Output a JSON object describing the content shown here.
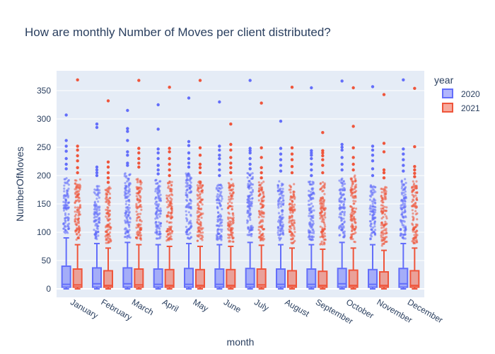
{
  "chart_data": {
    "type": "box",
    "title": "How are monthly Number of Moves per client distributed?",
    "xlabel": "month",
    "ylabel": "NumberOfMoves",
    "categories": [
      "January",
      "February",
      "March",
      "April",
      "May",
      "June",
      "July",
      "August",
      "September",
      "October",
      "November",
      "December"
    ],
    "ylim": [
      -15,
      385
    ],
    "yticks": [
      0,
      50,
      100,
      150,
      200,
      250,
      300,
      350
    ],
    "grid": true,
    "legend": {
      "title": "year",
      "position": "top-right"
    },
    "series": [
      {
        "name": "2020",
        "color": "#636efa",
        "fill": "rgba(99,110,250,0.5)",
        "boxes": [
          {
            "q1": 3,
            "median": 8,
            "q3": 40,
            "upper_fence": 90,
            "lower_fence": 0,
            "outlier_cluster_top": 198,
            "outliers": [
              307,
              262,
              252,
              243,
              230,
              220,
              212
            ]
          },
          {
            "q1": 3,
            "median": 9,
            "q3": 37,
            "upper_fence": 80,
            "lower_fence": 0,
            "outlier_cluster_top": 185,
            "outliers": [
              291,
              285,
              215,
              210,
              205,
              200
            ]
          },
          {
            "q1": 3,
            "median": 9,
            "q3": 37,
            "upper_fence": 82,
            "lower_fence": 0,
            "outlier_cluster_top": 205,
            "outliers": [
              315,
              283,
              278,
              262,
              242,
              236,
              222,
              218
            ]
          },
          {
            "q1": 3,
            "median": 8,
            "q3": 35,
            "upper_fence": 78,
            "lower_fence": 0,
            "outlier_cluster_top": 195,
            "outliers": [
              325,
              282,
              247,
              240,
              230,
              218,
              210,
              203
            ]
          },
          {
            "q1": 3,
            "median": 8,
            "q3": 36,
            "upper_fence": 80,
            "lower_fence": 0,
            "outlier_cluster_top": 205,
            "outliers": [
              337,
              260,
              253,
              240,
              230,
              222,
              215
            ]
          },
          {
            "q1": 3,
            "median": 8,
            "q3": 35,
            "upper_fence": 78,
            "lower_fence": 0,
            "outlier_cluster_top": 185,
            "outliers": [
              330,
              252,
              245,
              236,
              230,
              220,
              210,
              200
            ]
          },
          {
            "q1": 3,
            "median": 8,
            "q3": 36,
            "upper_fence": 82,
            "lower_fence": 0,
            "outlier_cluster_top": 205,
            "outliers": [
              368,
              248,
              244,
              240,
              230,
              220,
              212
            ]
          },
          {
            "q1": 3,
            "median": 8,
            "q3": 35,
            "upper_fence": 78,
            "lower_fence": 0,
            "outlier_cluster_top": 190,
            "outliers": [
              296,
              248,
              238,
              228,
              218,
              208
            ]
          },
          {
            "q1": 3,
            "median": 8,
            "q3": 35,
            "upper_fence": 78,
            "lower_fence": 0,
            "outlier_cluster_top": 190,
            "outliers": [
              355,
              244,
              240,
              236,
              230,
              220,
              210,
              200
            ]
          },
          {
            "q1": 3,
            "median": 9,
            "q3": 36,
            "upper_fence": 82,
            "lower_fence": 0,
            "outlier_cluster_top": 195,
            "outliers": [
              367,
              255,
              250,
              245,
              232,
              220,
              210
            ]
          },
          {
            "q1": 3,
            "median": 8,
            "q3": 34,
            "upper_fence": 78,
            "lower_fence": 0,
            "outlier_cluster_top": 185,
            "outliers": [
              357,
              252,
              245,
              236,
              226,
              212,
              200
            ]
          },
          {
            "q1": 3,
            "median": 9,
            "q3": 36,
            "upper_fence": 80,
            "lower_fence": 0,
            "outlier_cluster_top": 195,
            "outliers": [
              369,
              247,
              238,
              228,
              218,
              208
            ]
          }
        ]
      },
      {
        "name": "2021",
        "color": "#ef553b",
        "fill": "rgba(239,85,59,0.5)",
        "boxes": [
          {
            "q1": 3,
            "median": 7,
            "q3": 35,
            "upper_fence": 78,
            "lower_fence": 0,
            "outlier_cluster_top": 195,
            "outliers": [
              369,
              252,
              245,
              235,
              226,
              214,
              205
            ]
          },
          {
            "q1": 3,
            "median": 6,
            "q3": 32,
            "upper_fence": 72,
            "lower_fence": 0,
            "outlier_cluster_top": 180,
            "outliers": [
              332,
              224,
              215,
              205,
              196,
              188
            ]
          },
          {
            "q1": 3,
            "median": 7,
            "q3": 35,
            "upper_fence": 78,
            "lower_fence": 0,
            "outlier_cluster_top": 195,
            "outliers": [
              368,
              248,
              240,
              230,
              222,
              215
            ]
          },
          {
            "q1": 3,
            "median": 6,
            "q3": 34,
            "upper_fence": 75,
            "lower_fence": 0,
            "outlier_cluster_top": 190,
            "outliers": [
              356,
              248,
              242,
              230,
              220,
              210,
              200
            ]
          },
          {
            "q1": 3,
            "median": 6,
            "q3": 34,
            "upper_fence": 75,
            "lower_fence": 0,
            "outlier_cluster_top": 190,
            "outliers": [
              368,
              249,
              236,
              220,
              214,
              205
            ]
          },
          {
            "q1": 3,
            "median": 6,
            "q3": 34,
            "upper_fence": 75,
            "lower_fence": 0,
            "outlier_cluster_top": 195,
            "outliers": [
              291,
              255,
              245,
              232,
              222,
              214,
              205
            ]
          },
          {
            "q1": 3,
            "median": 7,
            "q3": 35,
            "upper_fence": 77,
            "lower_fence": 0,
            "outlier_cluster_top": 190,
            "outliers": [
              328,
              249,
              232,
              214,
              205,
              196
            ]
          },
          {
            "q1": 3,
            "median": 6,
            "q3": 32,
            "upper_fence": 72,
            "lower_fence": 0,
            "outlier_cluster_top": 185,
            "outliers": [
              356,
              249,
              238,
              228,
              216,
              205
            ]
          },
          {
            "q1": 3,
            "median": 6,
            "q3": 31,
            "upper_fence": 70,
            "lower_fence": 0,
            "outlier_cluster_top": 190,
            "outliers": [
              276,
              244,
              240,
              235,
              228,
              218,
              205
            ]
          },
          {
            "q1": 3,
            "median": 6,
            "q3": 33,
            "upper_fence": 72,
            "lower_fence": 0,
            "outlier_cluster_top": 200,
            "outliers": [
              355,
              287,
              249,
              232,
              220,
              210
            ]
          },
          {
            "q1": 3,
            "median": 6,
            "q3": 30,
            "upper_fence": 68,
            "lower_fence": 0,
            "outlier_cluster_top": 180,
            "outliers": [
              343,
              257,
              242,
              210,
              205,
              196
            ]
          },
          {
            "q1": 3,
            "median": 6,
            "q3": 32,
            "upper_fence": 72,
            "lower_fence": 0,
            "outlier_cluster_top": 190,
            "outliers": [
              354,
              251,
              216,
              210,
              204,
              198
            ]
          }
        ]
      }
    ]
  }
}
